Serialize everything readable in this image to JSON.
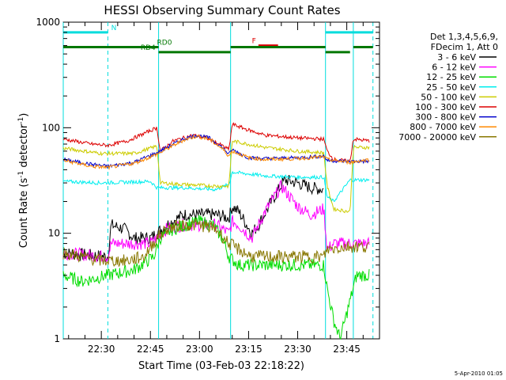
{
  "chart_data": {
    "type": "line",
    "title": "HESSI Observing Summary Count Rates",
    "xlabel": "Start Time (03-Feb-03 22:18:22)",
    "ylabel_parts": [
      "Count Rate (s",
      "-1",
      " detector",
      "-1",
      ")"
    ],
    "yscale": "log",
    "ylim": [
      1,
      1000
    ],
    "y_ticks": [
      1,
      10,
      100,
      1000
    ],
    "y_tick_labels": [
      "1",
      "10",
      "100",
      "1000"
    ],
    "xlim": [
      "22:18:22",
      "23:55:00"
    ],
    "x_ticks": [
      "22:30",
      "22:45",
      "23:00",
      "23:15",
      "23:30",
      "23:45"
    ],
    "grid": false,
    "legend_header": [
      "Det 1,3,4,5,6,9,",
      "FDecim 1, Att 0"
    ],
    "legend_placement": "right",
    "footer": "5-Apr-2010 01:05",
    "series": [
      {
        "name": "3 - 6 keV",
        "color": "#000000",
        "pts": [
          [
            "22:18:22",
            6.5
          ],
          [
            "22:32",
            6
          ],
          [
            "22:33",
            12
          ],
          [
            "22:37",
            11
          ],
          [
            "22:40",
            9
          ],
          [
            "22:45",
            9
          ],
          [
            "22:50",
            12
          ],
          [
            "22:55",
            15
          ],
          [
            "23:00",
            15
          ],
          [
            "23:05",
            15
          ],
          [
            "23:09",
            14
          ],
          [
            "23:10",
            18
          ],
          [
            "23:12",
            16
          ],
          [
            "23:16",
            10
          ],
          [
            "23:18",
            12
          ],
          [
            "23:22",
            20
          ],
          [
            "23:26",
            32
          ],
          [
            "23:30",
            30
          ],
          [
            "23:34",
            27
          ],
          [
            "23:38",
            26
          ]
        ]
      },
      {
        "name": "6 - 12 keV",
        "color": "#ff00ff",
        "pts": [
          [
            "22:18:22",
            6.5
          ],
          [
            "22:32",
            6
          ],
          [
            "22:33",
            8
          ],
          [
            "22:40",
            8
          ],
          [
            "22:45",
            8
          ],
          [
            "22:50",
            11
          ],
          [
            "22:55",
            12
          ],
          [
            "23:00",
            12
          ],
          [
            "23:05",
            12
          ],
          [
            "23:09",
            10
          ],
          [
            "23:10",
            13
          ],
          [
            "23:12",
            12
          ],
          [
            "23:16",
            9
          ],
          [
            "23:20",
            16
          ],
          [
            "23:25",
            28
          ],
          [
            "23:30",
            18
          ],
          [
            "23:34",
            15
          ],
          [
            "23:38",
            17
          ],
          [
            "23:39",
            7
          ],
          [
            "23:41",
            8
          ],
          [
            "23:52",
            8
          ]
        ]
      },
      {
        "name": "12 - 25 keV",
        "color": "#00dd00",
        "pts": [
          [
            "22:18:22",
            4
          ],
          [
            "22:24",
            3.5
          ],
          [
            "22:32",
            4
          ],
          [
            "22:40",
            4.5
          ],
          [
            "22:46",
            6
          ],
          [
            "22:48",
            9
          ],
          [
            "22:52",
            11
          ],
          [
            "22:56",
            12
          ],
          [
            "23:00",
            13
          ],
          [
            "23:04",
            12
          ],
          [
            "23:07",
            9
          ],
          [
            "23:09",
            6
          ],
          [
            "23:12",
            5
          ],
          [
            "23:20",
            5
          ],
          [
            "23:30",
            5
          ],
          [
            "23:38",
            5
          ],
          [
            "23:39",
            3
          ],
          [
            "23:41",
            1.5
          ],
          [
            "23:43",
            1
          ],
          [
            "23:48",
            4
          ],
          [
            "23:52",
            4
          ]
        ]
      },
      {
        "name": "25 - 50 keV",
        "color": "#00eeee",
        "pts": [
          [
            "22:18:22",
            31
          ],
          [
            "22:30",
            30
          ],
          [
            "22:45",
            31
          ],
          [
            "22:47",
            27
          ],
          [
            "22:55",
            27
          ],
          [
            "23:05",
            26
          ],
          [
            "23:09",
            29
          ],
          [
            "23:10",
            38
          ],
          [
            "23:20",
            35
          ],
          [
            "23:30",
            34
          ],
          [
            "23:38",
            34
          ],
          [
            "23:39",
            22
          ],
          [
            "23:41",
            20
          ],
          [
            "23:46",
            32
          ],
          [
            "23:52",
            32
          ]
        ]
      },
      {
        "name": "50 - 100 keV",
        "color": "#cccc00",
        "pts": [
          [
            "22:18:22",
            64
          ],
          [
            "22:30",
            57
          ],
          [
            "22:40",
            57
          ],
          [
            "22:47",
            67
          ],
          [
            "22:48",
            30
          ],
          [
            "22:55",
            29
          ],
          [
            "23:05",
            28
          ],
          [
            "23:09",
            28
          ],
          [
            "23:10",
            75
          ],
          [
            "23:20",
            65
          ],
          [
            "23:30",
            60
          ],
          [
            "23:38",
            58
          ],
          [
            "23:39",
            28
          ],
          [
            "23:41",
            17
          ],
          [
            "23:46",
            16
          ],
          [
            "23:47",
            65
          ],
          [
            "23:52",
            65
          ]
        ]
      },
      {
        "name": "100 - 300 keV",
        "color": "#dd0000",
        "pts": [
          [
            "22:18:22",
            78
          ],
          [
            "22:27",
            70
          ],
          [
            "22:32",
            68
          ],
          [
            "22:38",
            75
          ],
          [
            "22:47",
            100
          ],
          [
            "22:48",
            60
          ],
          [
            "22:52",
            75
          ],
          [
            "22:58",
            85
          ],
          [
            "23:02",
            80
          ],
          [
            "23:06",
            70
          ],
          [
            "23:09",
            62
          ],
          [
            "23:10",
            108
          ],
          [
            "23:15",
            95
          ],
          [
            "23:20",
            85
          ],
          [
            "23:30",
            80
          ],
          [
            "23:38",
            78
          ],
          [
            "23:39",
            60
          ],
          [
            "23:41",
            50
          ],
          [
            "23:46",
            48
          ],
          [
            "23:47",
            78
          ],
          [
            "23:52",
            75
          ]
        ]
      },
      {
        "name": "300 - 800 keV",
        "color": "#0000cc",
        "pts": [
          [
            "22:18:22",
            50
          ],
          [
            "22:27",
            45
          ],
          [
            "22:32",
            43
          ],
          [
            "22:40",
            47
          ],
          [
            "22:47",
            58
          ],
          [
            "22:55",
            78
          ],
          [
            "22:59",
            85
          ],
          [
            "23:03",
            80
          ],
          [
            "23:07",
            65
          ],
          [
            "23:09",
            56
          ],
          [
            "23:10",
            62
          ],
          [
            "23:15",
            52
          ],
          [
            "23:20",
            51
          ],
          [
            "23:30",
            52
          ],
          [
            "23:38",
            54
          ],
          [
            "23:39",
            49
          ],
          [
            "23:46",
            48
          ],
          [
            "23:52",
            48
          ]
        ]
      },
      {
        "name": "800 - 7000 keV",
        "color": "#ff8800",
        "pts": [
          [
            "22:18:22",
            49
          ],
          [
            "22:27",
            43
          ],
          [
            "22:32",
            42
          ],
          [
            "22:40",
            46
          ],
          [
            "22:47",
            56
          ],
          [
            "22:55",
            76
          ],
          [
            "22:59",
            83
          ],
          [
            "23:03",
            78
          ],
          [
            "23:07",
            63
          ],
          [
            "23:09",
            54
          ],
          [
            "23:10",
            60
          ],
          [
            "23:15",
            52
          ],
          [
            "23:20",
            50
          ],
          [
            "23:30",
            51
          ],
          [
            "23:38",
            53
          ],
          [
            "23:39",
            50
          ],
          [
            "23:46",
            47
          ],
          [
            "23:52",
            50
          ]
        ]
      },
      {
        "name": "7000 - 20000 keV",
        "color": "#887700",
        "pts": [
          [
            "22:18:22",
            6.5
          ],
          [
            "22:24",
            6
          ],
          [
            "22:30",
            5.5
          ],
          [
            "22:38",
            5.5
          ],
          [
            "22:43",
            6
          ],
          [
            "22:47",
            9
          ],
          [
            "22:50",
            11
          ],
          [
            "22:55",
            12
          ],
          [
            "23:00",
            12
          ],
          [
            "23:05",
            11
          ],
          [
            "23:09",
            8
          ],
          [
            "23:12",
            7
          ],
          [
            "23:16",
            6
          ],
          [
            "23:20",
            6
          ],
          [
            "23:30",
            6
          ],
          [
            "23:38",
            6
          ],
          [
            "23:39",
            7
          ],
          [
            "23:45",
            7.5
          ],
          [
            "23:52",
            7.5
          ]
        ]
      }
    ],
    "vertical_lines": [
      {
        "t": "22:18:22",
        "style": "solid",
        "color": "#00dddd"
      },
      {
        "t": "22:32",
        "style": "dashed",
        "color": "#00dddd"
      },
      {
        "t": "22:47:30",
        "style": "solid",
        "color": "#00dddd"
      },
      {
        "t": "23:09:30",
        "style": "solid",
        "color": "#00dddd"
      },
      {
        "t": "23:38:30",
        "style": "solid",
        "color": "#00dddd"
      },
      {
        "t": "23:47",
        "style": "solid",
        "color": "#00dddd"
      },
      {
        "t": "23:53",
        "style": "dashed",
        "color": "#00dddd"
      }
    ],
    "flag_bars": [
      {
        "label": "N",
        "color": "#00dddd",
        "level": 800,
        "segments": [
          [
            "22:18:22",
            "22:32"
          ],
          [
            "23:38:30",
            "23:53"
          ]
        ],
        "label_at": "22:33"
      },
      {
        "label": "F",
        "color": "#dd0000",
        "level": 600,
        "segments": [
          [
            "23:18",
            "23:24"
          ]
        ],
        "label_at": "23:16"
      },
      {
        "label": "RD0",
        "color": "#007700",
        "level": 580,
        "segments": [
          [
            "22:18:22",
            "22:47:30"
          ],
          [
            "23:09:30",
            "23:38:30"
          ],
          [
            "23:47",
            "23:53"
          ]
        ],
        "label_at": "22:47"
      },
      {
        "label": "RD4",
        "color": "#007700",
        "level": 520,
        "segments": [
          [
            "22:47:30",
            "23:09:30"
          ],
          [
            "23:38:30",
            "23:46"
          ]
        ],
        "label_at": "22:42"
      }
    ]
  }
}
